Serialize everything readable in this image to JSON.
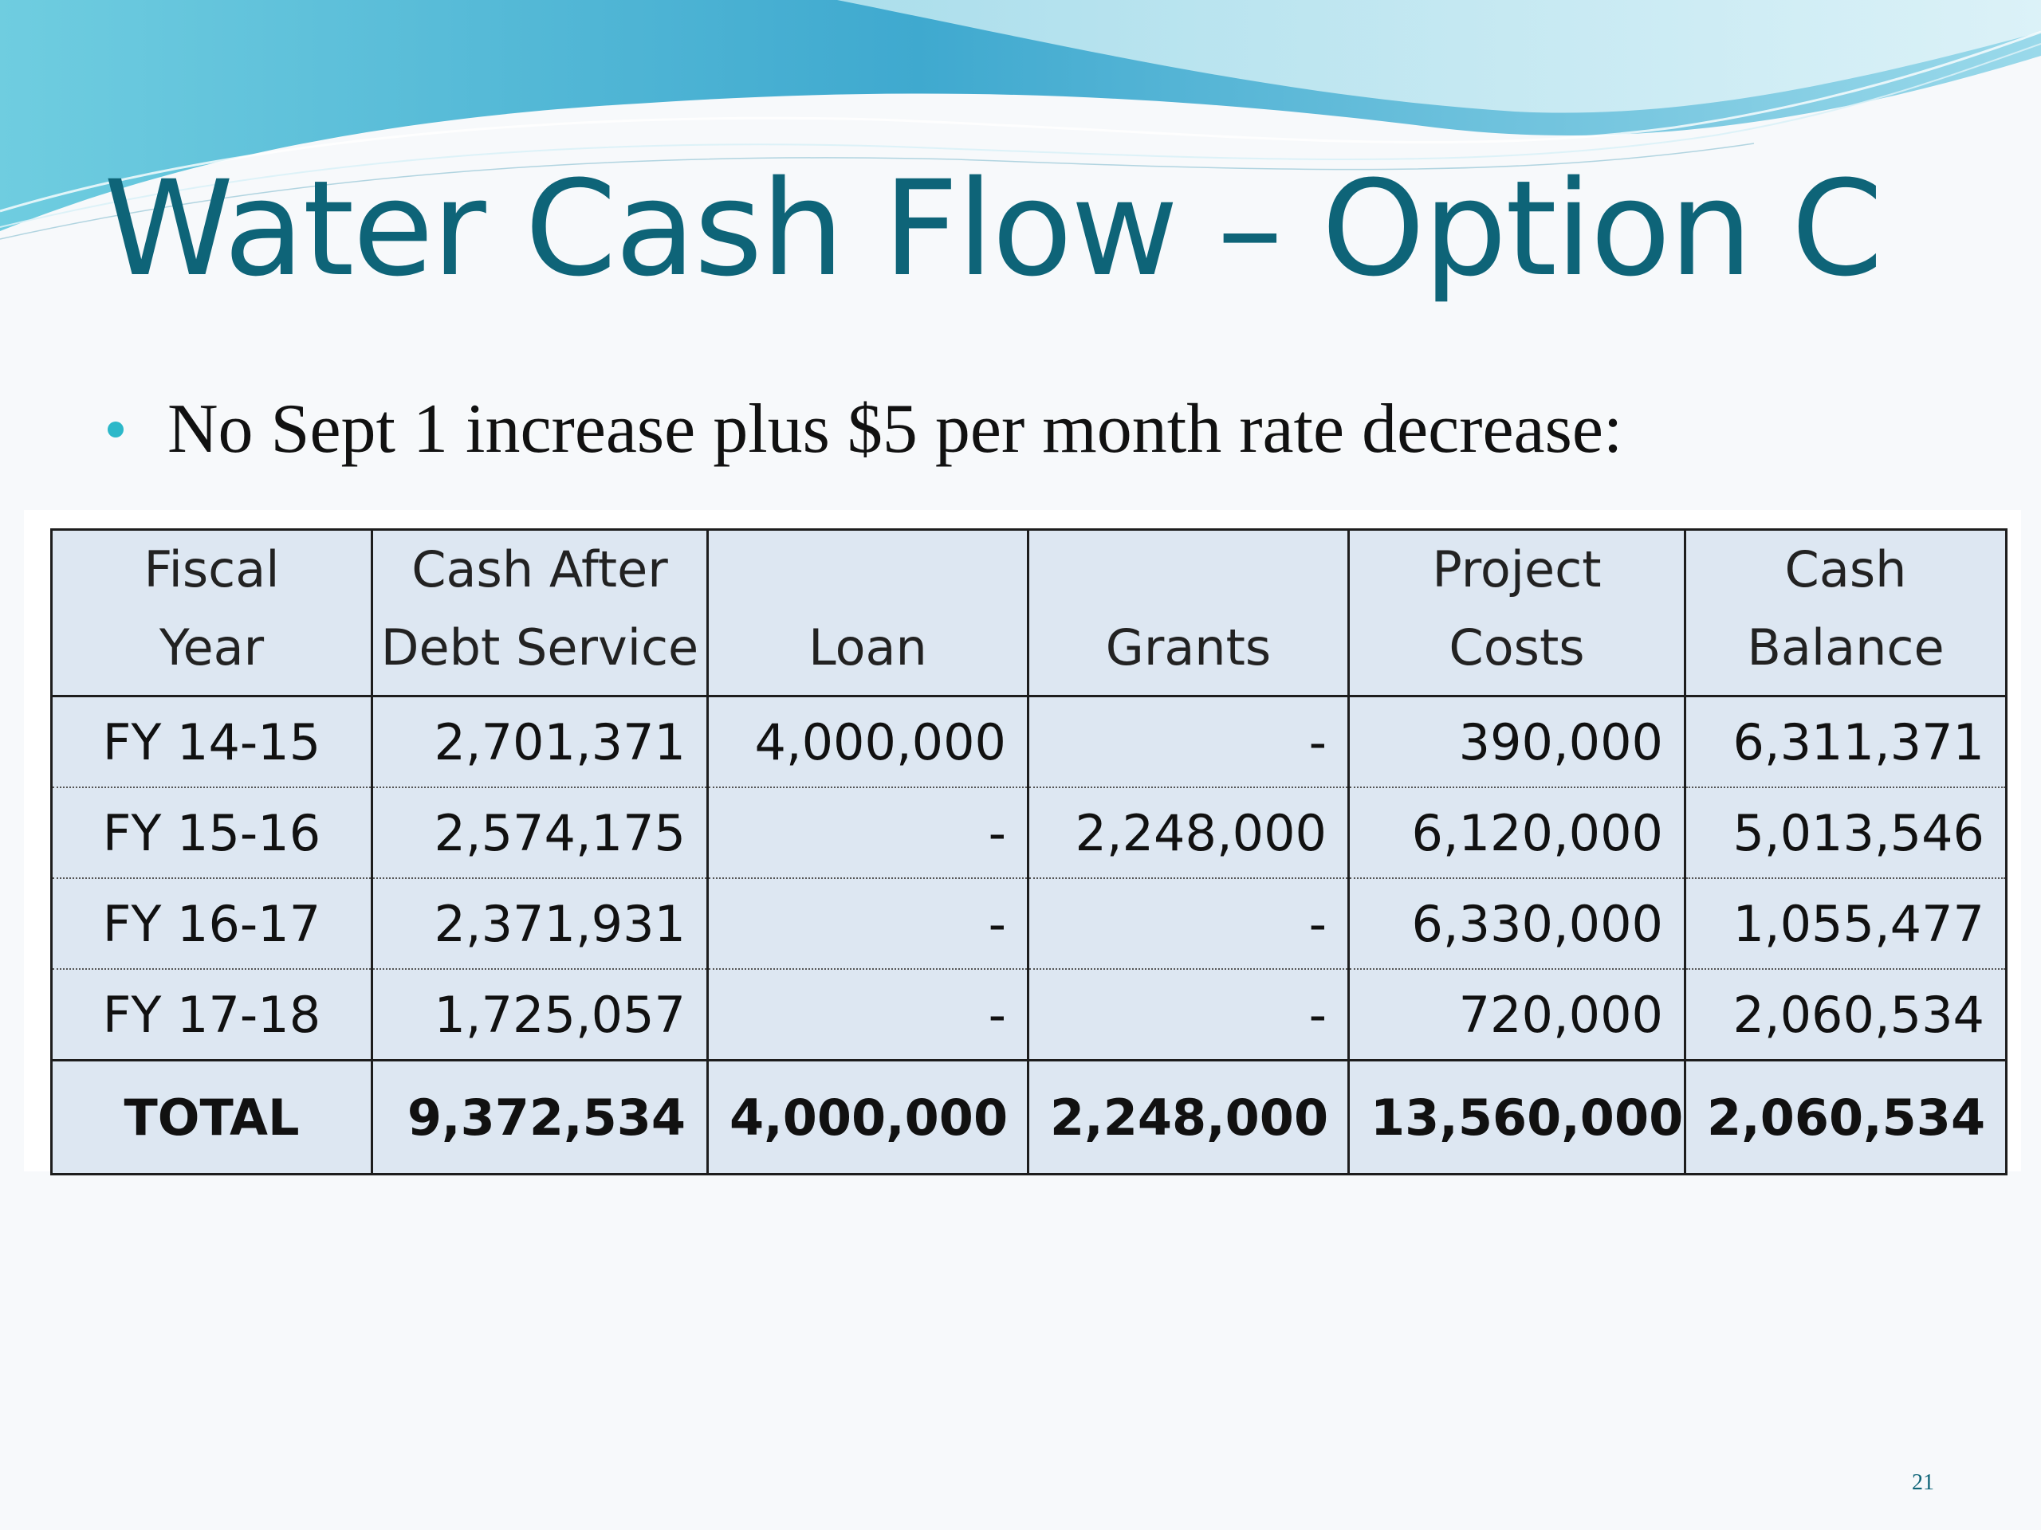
{
  "slide": {
    "title": "Water Cash Flow – Option C",
    "bullet": "No Sept 1 increase plus $5 per month rate decrease:",
    "page_number": "21",
    "colors": {
      "title": "#0e6478",
      "bullet": "#2cb8c9",
      "table_fill": "#dde7f2",
      "wave": "#57c3dc"
    }
  },
  "table": {
    "columns": [
      {
        "line1": "Fiscal",
        "line2": "Year"
      },
      {
        "line1": "Cash After",
        "line2": "Debt Service"
      },
      {
        "line1": "",
        "line2": "Loan"
      },
      {
        "line1": "",
        "line2": "Grants"
      },
      {
        "line1": "Project",
        "line2": "Costs"
      },
      {
        "line1": "Cash",
        "line2": "Balance"
      }
    ],
    "rows": [
      [
        "FY 14-15",
        "2,701,371",
        "4,000,000",
        "-",
        "390,000",
        "6,311,371"
      ],
      [
        "FY 15-16",
        "2,574,175",
        "-",
        "2,248,000",
        "6,120,000",
        "5,013,546"
      ],
      [
        "FY 16-17",
        "2,371,931",
        "-",
        "-",
        "6,330,000",
        "1,055,477"
      ],
      [
        "FY 17-18",
        "1,725,057",
        "-",
        "-",
        "720,000",
        "2,060,534"
      ]
    ],
    "total": [
      "TOTAL",
      "9,372,534",
      "4,000,000",
      "2,248,000",
      "13,560,000",
      "2,060,534"
    ]
  }
}
